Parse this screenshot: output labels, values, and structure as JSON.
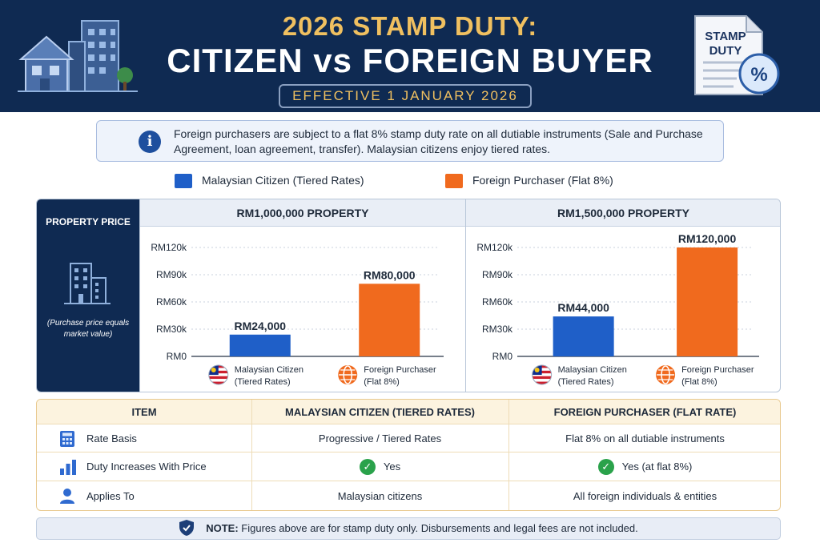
{
  "header": {
    "title_line1": "2026 STAMP DUTY:",
    "title_line2": "CITIZEN vs FOREIGN BUYER",
    "effective": "EFFECTIVE 1 JANUARY 2026",
    "stamp_text_1": "STAMP",
    "stamp_text_2": "DUTY",
    "stamp_percent": "%"
  },
  "info": {
    "icon_glyph": "i",
    "text": "Foreign purchasers are subject to a flat 8% stamp duty rate on all dutiable instruments (Sale and Purchase Agreement, loan agreement, transfer). Malaysian citizens enjoy tiered rates."
  },
  "legend": {
    "citizen": "Malaysian Citizen (Tiered Rates)",
    "foreign": "Foreign Purchaser (Flat 8%)"
  },
  "colors": {
    "citizen": "#1f5fc8",
    "foreign": "#f06a1e",
    "navy": "#0f2a52",
    "gold": "#f0c060"
  },
  "side": {
    "title": "PROPERTY PRICE",
    "note": "(Purchase price equals market value)"
  },
  "chart_data": [
    {
      "type": "bar",
      "title": "RM1,000,000 PROPERTY",
      "categories": [
        "Malaysian Citizen (Tiered Rates)",
        "Foreign Purchaser (Flat 8%)"
      ],
      "category_lines": [
        [
          "Malaysian Citizen",
          "(Tiered Rates)"
        ],
        [
          "Foreign Purchaser",
          "(Flat 8%)"
        ]
      ],
      "values": [
        24000,
        80000
      ],
      "value_labels": [
        "RM24,000",
        "RM80,000"
      ],
      "yticks": [
        0,
        30000,
        60000,
        90000,
        120000
      ],
      "ytick_labels": [
        "RM0",
        "RM30k",
        "RM60k",
        "RM90k",
        "RM120k"
      ],
      "ylim": [
        0,
        120000
      ],
      "grid": true
    },
    {
      "type": "bar",
      "title": "RM1,500,000 PROPERTY",
      "categories": [
        "Malaysian Citizen (Tiered Rates)",
        "Foreign Purchaser (Flat 8%)"
      ],
      "category_lines": [
        [
          "Malaysian Citizen",
          "(Tiered Rates)"
        ],
        [
          "Foreign Purchaser",
          "(Flat 8%)"
        ]
      ],
      "values": [
        44000,
        120000
      ],
      "value_labels": [
        "RM44,000",
        "RM120,000"
      ],
      "yticks": [
        0,
        30000,
        60000,
        90000,
        120000
      ],
      "ytick_labels": [
        "RM0",
        "RM30k",
        "RM60k",
        "RM90k",
        "RM120k"
      ],
      "ylim": [
        0,
        120000
      ],
      "grid": true
    }
  ],
  "table": {
    "headers": [
      "ITEM",
      "MALAYSIAN CITIZEN (TIERED RATES)",
      "FOREIGN PURCHASER (FLAT RATE)"
    ],
    "rows": [
      {
        "icon": "calculator-icon",
        "item": "Rate Basis",
        "citizen": "Progressive / Tiered Rates",
        "foreign": "Flat 8% on all dutiable instruments",
        "check": false
      },
      {
        "icon": "bar-chart-icon",
        "item": "Duty Increases With Price",
        "citizen": "Yes",
        "foreign": "Yes (at flat 8%)",
        "check": true
      },
      {
        "icon": "user-icon",
        "item": "Applies To",
        "citizen": "Malaysian citizens",
        "foreign": "All foreign individuals & entities",
        "check": false
      }
    ]
  },
  "note": {
    "label": "NOTE:",
    "text": " Figures above are for stamp duty only. Disbursements and legal fees are not included."
  }
}
